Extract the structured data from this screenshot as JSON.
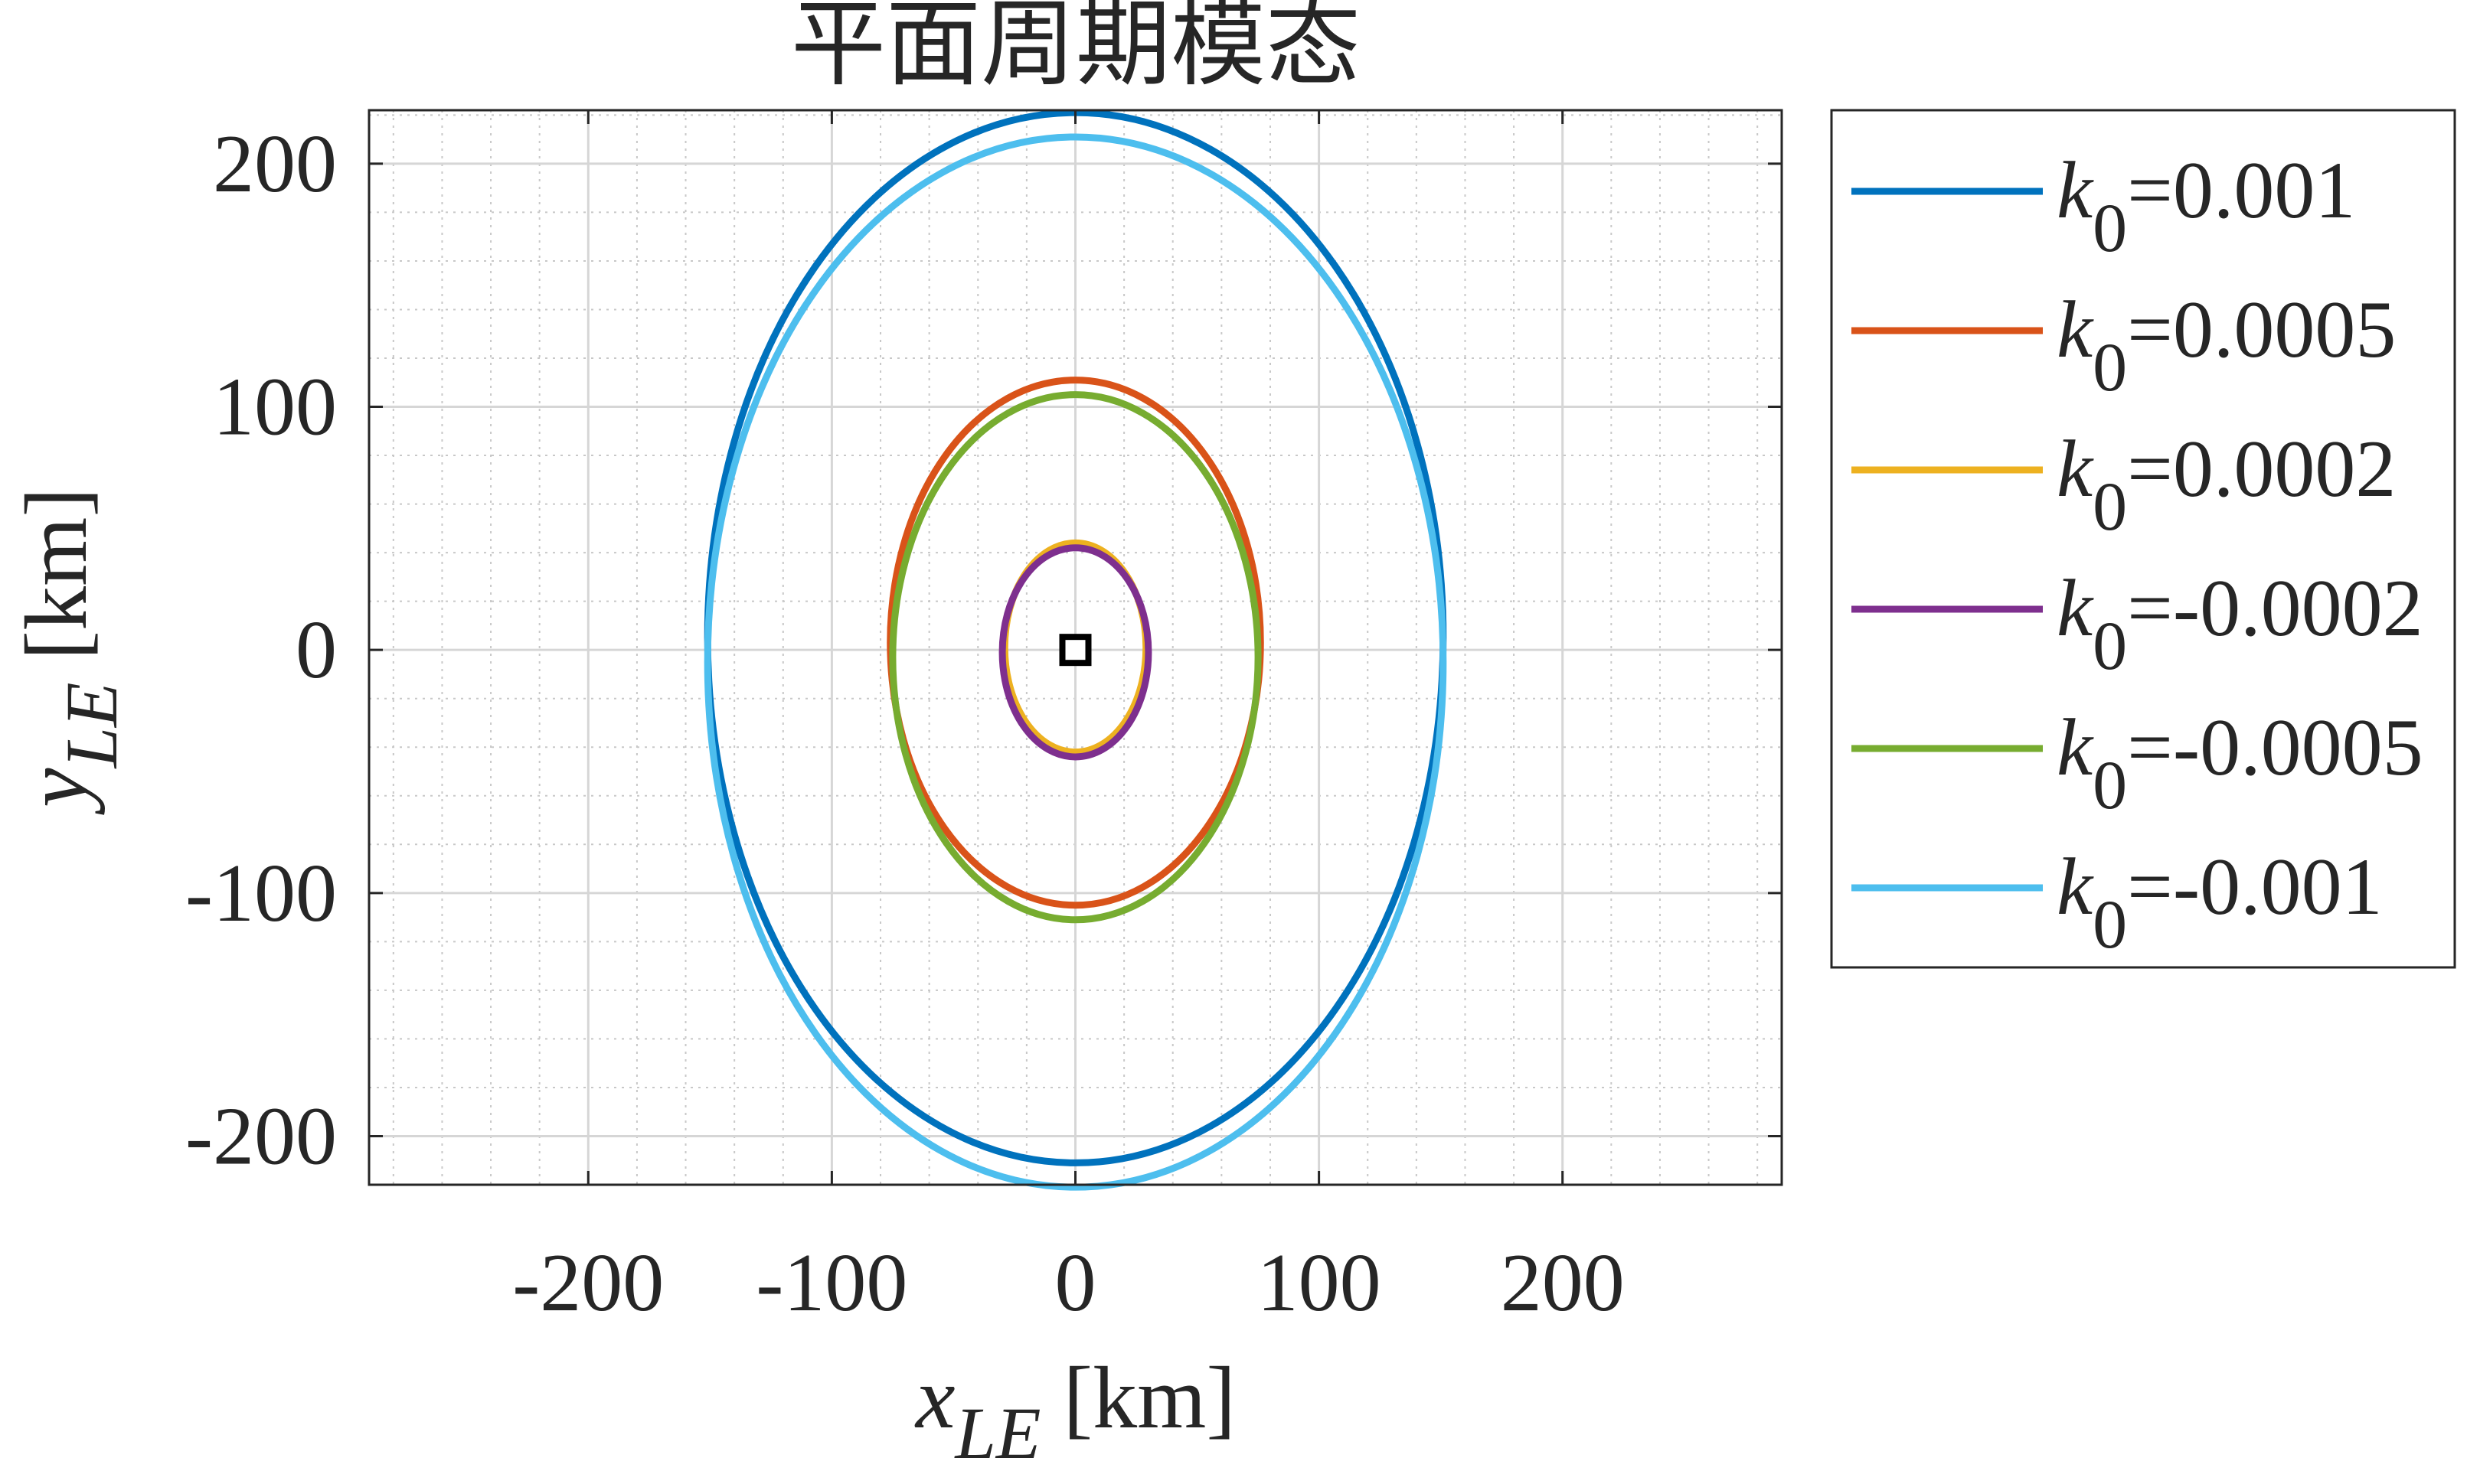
{
  "chart_data": {
    "type": "line",
    "title": "平面周期模态",
    "xlabel": {
      "var": "x",
      "sub": "LE",
      "unit": "[km]"
    },
    "ylabel": {
      "var": "y",
      "sub": "LE",
      "unit": "[km]"
    },
    "xlim": [
      -290,
      290
    ],
    "ylim": [
      -220,
      222
    ],
    "xticks": [
      -200,
      -100,
      0,
      100,
      200
    ],
    "xtick_labels": [
      "-200",
      "-100",
      "0",
      "100",
      "200"
    ],
    "yticks": [
      -200,
      -100,
      0,
      100,
      200
    ],
    "ytick_labels": [
      "-200",
      "-100",
      "0",
      "100",
      "200"
    ],
    "grid": true,
    "minor_grid": true,
    "legend_position": "outside-right",
    "center_marker": {
      "x": 0,
      "y": 0,
      "shape": "square"
    },
    "series": [
      {
        "name_var": "k",
        "name_sub": "0",
        "name_value": "=0.001",
        "color": "#0072BD",
        "cx": 0,
        "cy": 5,
        "a": 151,
        "b": 216
      },
      {
        "name_var": "k",
        "name_sub": "0",
        "name_value": "=0.0005",
        "color": "#D95319",
        "cx": 0,
        "cy": 3,
        "a": 76,
        "b": 108
      },
      {
        "name_var": "k",
        "name_sub": "0",
        "name_value": "=0.0002",
        "color": "#EDB120",
        "cx": 0,
        "cy": 1,
        "a": 29,
        "b": 43
      },
      {
        "name_var": "k",
        "name_sub": "0",
        "name_value": "=-0.0002",
        "color": "#7E2F8E",
        "cx": 0,
        "cy": -1,
        "a": 30,
        "b": 43
      },
      {
        "name_var": "k",
        "name_sub": "0",
        "name_value": "=-0.0005",
        "color": "#77AC30",
        "cx": 0,
        "cy": -3,
        "a": 75,
        "b": 108
      },
      {
        "name_var": "k",
        "name_sub": "0",
        "name_value": "=-0.001",
        "color": "#4DBEEE",
        "cx": 0,
        "cy": -5,
        "a": 151,
        "b": 216
      }
    ]
  }
}
